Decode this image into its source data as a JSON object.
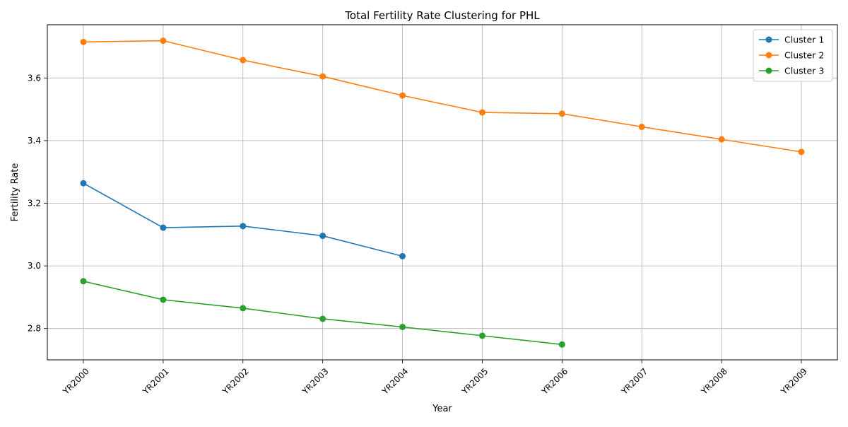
{
  "chart_data": {
    "type": "line",
    "title": "Total Fertility Rate Clustering for PHL",
    "xlabel": "Year",
    "ylabel": "Fertility Rate",
    "categories": [
      "YR2000",
      "YR2001",
      "YR2002",
      "YR2003",
      "YR2004",
      "YR2005",
      "YR2006",
      "YR2007",
      "YR2008",
      "YR2009"
    ],
    "ylim": [
      2.7,
      3.77
    ],
    "yticks": [
      2.8,
      3.0,
      3.2,
      3.4,
      3.6
    ],
    "ytick_labels": [
      "2.8",
      "3.0",
      "3.2",
      "3.4",
      "3.6"
    ],
    "grid": true,
    "legend_position": "top-right",
    "series": [
      {
        "name": "Cluster 1",
        "color": "#1f77b4",
        "values": [
          3.264,
          3.122,
          3.127,
          3.096,
          3.031,
          null,
          null,
          null,
          null,
          null
        ]
      },
      {
        "name": "Cluster 2",
        "color": "#ff7f0e",
        "values": [
          3.715,
          3.719,
          3.657,
          3.605,
          3.544,
          3.49,
          3.486,
          3.444,
          3.404,
          3.364
        ]
      },
      {
        "name": "Cluster 3",
        "color": "#2ca02c",
        "values": [
          2.951,
          2.892,
          2.865,
          2.831,
          2.805,
          2.777,
          2.749,
          null,
          null,
          null
        ]
      }
    ]
  }
}
